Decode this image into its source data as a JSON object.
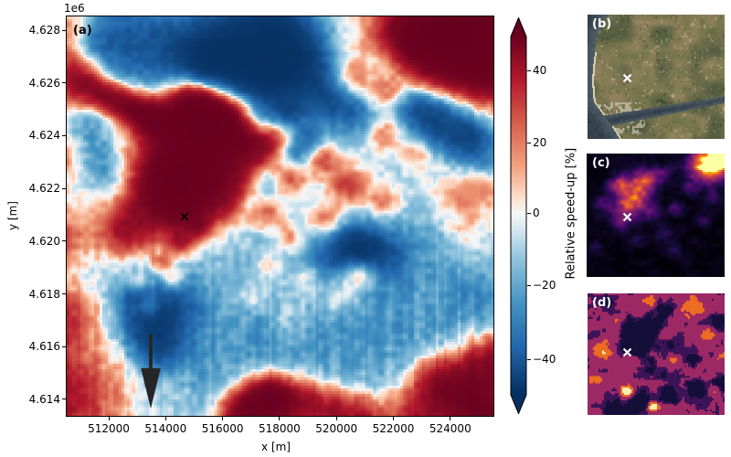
{
  "figure": {
    "panels": {
      "a": {
        "label": "(a)"
      },
      "b": {
        "label": "(b)"
      },
      "c": {
        "label": "(c)"
      },
      "d": {
        "label": "(d)"
      }
    }
  },
  "axes": {
    "xlabel": "x [m]",
    "ylabel": "y [m]",
    "offset_text": "1e6",
    "x_tick_labels": [
      "512000",
      "514000",
      "516000",
      "518000",
      "520000",
      "522000",
      "524000"
    ],
    "y_tick_labels": [
      "4.628",
      "4.626",
      "4.624",
      "4.622",
      "4.620",
      "4.618",
      "4.616",
      "4.614"
    ]
  },
  "colorbar": {
    "label": "Relative speed-up [%]",
    "tick_labels": [
      "40",
      "20",
      "0",
      "−20",
      "−40"
    ]
  },
  "chart_data": {
    "type": "heatmap",
    "panels": [
      {
        "id": "a",
        "kind": "heatmap",
        "colormap": "RdBu_r",
        "xlabel": "x [m]",
        "ylabel": "y [m]",
        "x_ticks": [
          512000,
          514000,
          516000,
          518000,
          520000,
          522000,
          524000
        ],
        "y_ticks": [
          4614000,
          4616000,
          4618000,
          4620000,
          4622000,
          4624000,
          4626000,
          4628000
        ],
        "x_range": [
          510500,
          525500
        ],
        "y_range": [
          4613400,
          4628500
        ],
        "value_label": "Relative speed-up [%]",
        "value_range": [
          -50,
          50
        ],
        "marker": {
          "symbol": "x",
          "color": "#000000",
          "x": 514700,
          "y": 4621000
        },
        "arrow": {
          "color": "#222222",
          "x": 513450,
          "y_tail": 4616600,
          "y_head": 4614000,
          "direction": "down"
        }
      },
      {
        "id": "b",
        "kind": "image",
        "description": "aerial/satellite basemap of coastal region",
        "marker": {
          "symbol": "x",
          "color": "#ffffff",
          "x_frac": 0.285,
          "y_frac": 0.51
        }
      },
      {
        "id": "c",
        "kind": "heatmap",
        "colormap": "inferno",
        "description": "continuous terrain-like field, bright maximum at top right",
        "marker": {
          "symbol": "x",
          "color": "#ffffff",
          "x_frac": 0.29,
          "y_frac": 0.51
        }
      },
      {
        "id": "d",
        "kind": "categorical-map",
        "colormap": "magma (discrete classes)",
        "class_colors": [
          "#150e38",
          "#3c1357",
          "#9c2964",
          "#ee6b22",
          "#f6efae"
        ],
        "marker": {
          "symbol": "x",
          "color": "#ffffff",
          "x_frac": 0.29,
          "y_frac": 0.48
        }
      }
    ],
    "colorbar": {
      "label": "Relative speed-up [%]",
      "ticks": [
        40,
        20,
        0,
        -20,
        -40
      ],
      "vmin": -50,
      "vmax": 50,
      "colormap": "RdBu_r",
      "extend": "both",
      "orientation": "vertical"
    },
    "layout_hints": {
      "grid": false,
      "frame_panel_a": true
    }
  },
  "colors": {
    "background": "#ffffff",
    "dark_red": "#67001f",
    "dark_blue": "#053061",
    "neutral": "#f7f7f7"
  }
}
